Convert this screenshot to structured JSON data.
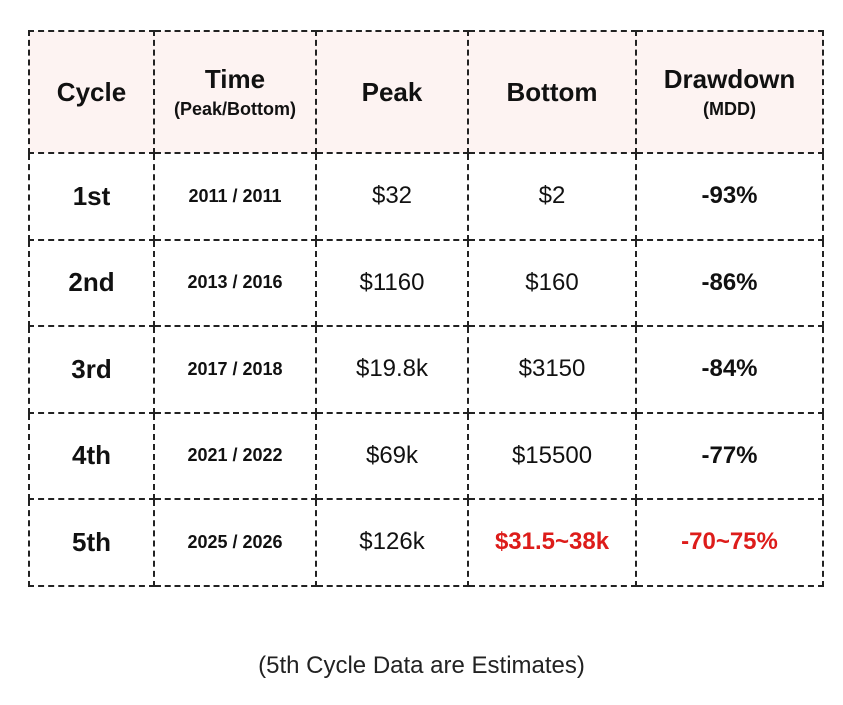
{
  "table": {
    "header": [
      {
        "label": "Cycle"
      },
      {
        "label": "Time",
        "sublabel": "(Peak/Bottom)"
      },
      {
        "label": "Peak"
      },
      {
        "label": "Bottom"
      },
      {
        "label": "Drawdown",
        "sublabel": "(MDD)"
      }
    ],
    "rows": [
      [
        "1st",
        "2011 / 2011",
        "$32",
        "$2",
        "-93%"
      ],
      [
        "2nd",
        "2013 / 2016",
        "$1160",
        "$160",
        "-86%"
      ],
      [
        "3rd",
        "2017 / 2018",
        "$19.8k",
        "$3150",
        "-84%"
      ],
      [
        "4th",
        "2021 / 2022",
        "$69k",
        "$15500",
        "-77%"
      ],
      [
        "5th",
        "2025 / 2026",
        "$126k",
        "$31.5~38k",
        "-70~75%"
      ]
    ]
  },
  "footnote": "(5th Cycle Data are Estimates)"
}
